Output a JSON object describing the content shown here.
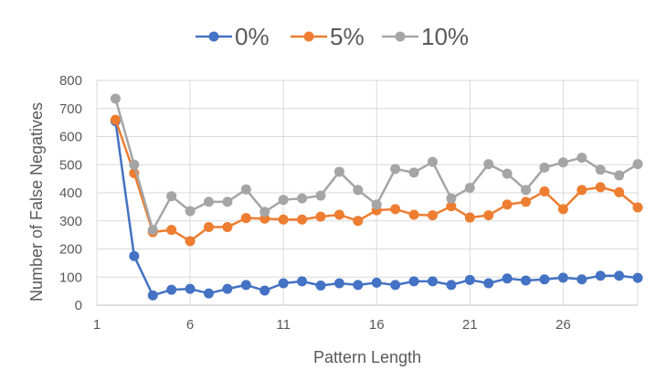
{
  "chart_data": {
    "type": "line",
    "title": "",
    "xlabel": "Pattern Length",
    "ylabel": "Number of False Negatives",
    "xlim": [
      1,
      30
    ],
    "ylim": [
      0,
      800
    ],
    "x_ticks": [
      1,
      6,
      11,
      16,
      21,
      26
    ],
    "y_ticks": [
      0,
      100,
      200,
      300,
      400,
      500,
      600,
      700,
      800
    ],
    "grid": true,
    "legend_position": "top",
    "x": [
      2,
      3,
      4,
      5,
      6,
      7,
      8,
      9,
      10,
      11,
      12,
      13,
      14,
      15,
      16,
      17,
      18,
      19,
      20,
      21,
      22,
      23,
      24,
      25,
      26,
      27,
      28,
      29,
      30
    ],
    "series": [
      {
        "name": "0%",
        "color": "#4472C4",
        "values": [
          655,
          175,
          35,
          55,
          58,
          42,
          58,
          72,
          52,
          78,
          85,
          70,
          78,
          72,
          80,
          72,
          85,
          85,
          72,
          90,
          78,
          95,
          88,
          92,
          98,
          92,
          105,
          105,
          97
        ]
      },
      {
        "name": "5%",
        "color": "#ED7D31",
        "values": [
          660,
          470,
          260,
          268,
          228,
          278,
          278,
          310,
          308,
          305,
          305,
          315,
          322,
          300,
          338,
          342,
          322,
          320,
          352,
          312,
          320,
          358,
          368,
          405,
          342,
          410,
          420,
          402,
          348
        ]
      },
      {
        "name": "10%",
        "color": "#A5A5A5",
        "values": [
          735,
          500,
          268,
          388,
          335,
          368,
          368,
          412,
          332,
          375,
          380,
          390,
          475,
          410,
          358,
          485,
          472,
          510,
          380,
          418,
          502,
          468,
          410,
          490,
          508,
          525,
          482,
          462,
          502
        ]
      }
    ]
  }
}
